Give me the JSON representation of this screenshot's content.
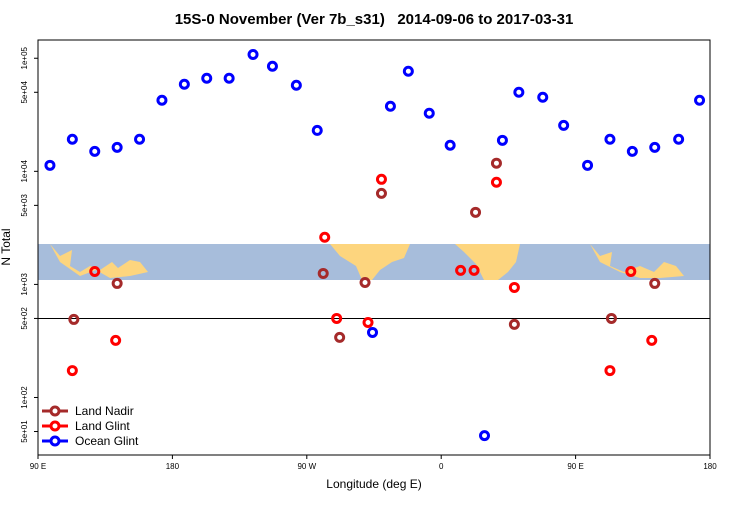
{
  "chart_data": {
    "type": "scatter",
    "title": "15S-0 November (Ver 7b_s31)   2014-09-06 to 2017-03-31",
    "x_label": "Longitude (deg E)",
    "y_label": "N Total",
    "log_y": true,
    "xlim": [
      90,
      540
    ],
    "xticks": [
      {
        "value": 90,
        "label": "90 E"
      },
      180,
      {
        "value": 270,
        "label": "90 W"
      },
      {
        "value": 360,
        "label": "0"
      },
      {
        "value": 450,
        "label": "90 E"
      },
      {
        "value": 540,
        "label": "180"
      }
    ],
    "ylim": [
      31,
      145000
    ],
    "yticks": [
      {
        "value": 50,
        "label": "5e+01"
      },
      {
        "value": 100,
        "label": "1e+02"
      },
      {
        "value": 500,
        "label": "5e+02"
      },
      {
        "value": 1000,
        "label": "1e+03"
      },
      {
        "value": 5000,
        "label": "5e+03"
      },
      {
        "value": 10000,
        "label": "1e+04"
      },
      {
        "value": 50000,
        "label": "5e+04"
      },
      {
        "value": 100000,
        "label": "1e+05"
      }
    ],
    "hline": 500,
    "legend": "bottom-left",
    "series": [
      {
        "name": "Land Nadir",
        "color": "#a52a2a",
        "x": [
          114,
          143,
          281,
          292,
          309,
          320,
          383,
          397,
          409,
          474,
          503
        ],
        "values": [
          490,
          1020,
          1250,
          340,
          1040,
          6380,
          4340,
          11800,
          443,
          500,
          1020
        ]
      },
      {
        "name": "Land Glint",
        "color": "#ff0000",
        "x": [
          113,
          128,
          142,
          282,
          290,
          311,
          320,
          373,
          382,
          397,
          409,
          473,
          487,
          501
        ],
        "values": [
          173,
          1300,
          320,
          2610,
          500,
          460,
          8500,
          1330,
          1330,
          8000,
          940,
          173,
          1300,
          320
        ]
      },
      {
        "name": "Ocean Glint",
        "color": "#0000ff",
        "x": [
          98,
          113,
          128,
          143,
          158,
          173,
          188,
          203,
          218,
          234,
          247,
          263,
          277,
          314,
          326,
          338,
          352,
          366,
          389,
          401,
          412,
          428,
          442,
          458,
          473,
          488,
          503,
          519,
          533
        ],
        "values": [
          11300,
          19200,
          15000,
          16300,
          19200,
          42500,
          58900,
          66500,
          66500,
          108000,
          85000,
          57700,
          23000,
          376,
          37600,
          76700,
          32600,
          17000,
          46,
          18800,
          50000,
          45200,
          25500,
          11300,
          19200,
          15000,
          16300,
          19200,
          42500
        ]
      }
    ]
  }
}
